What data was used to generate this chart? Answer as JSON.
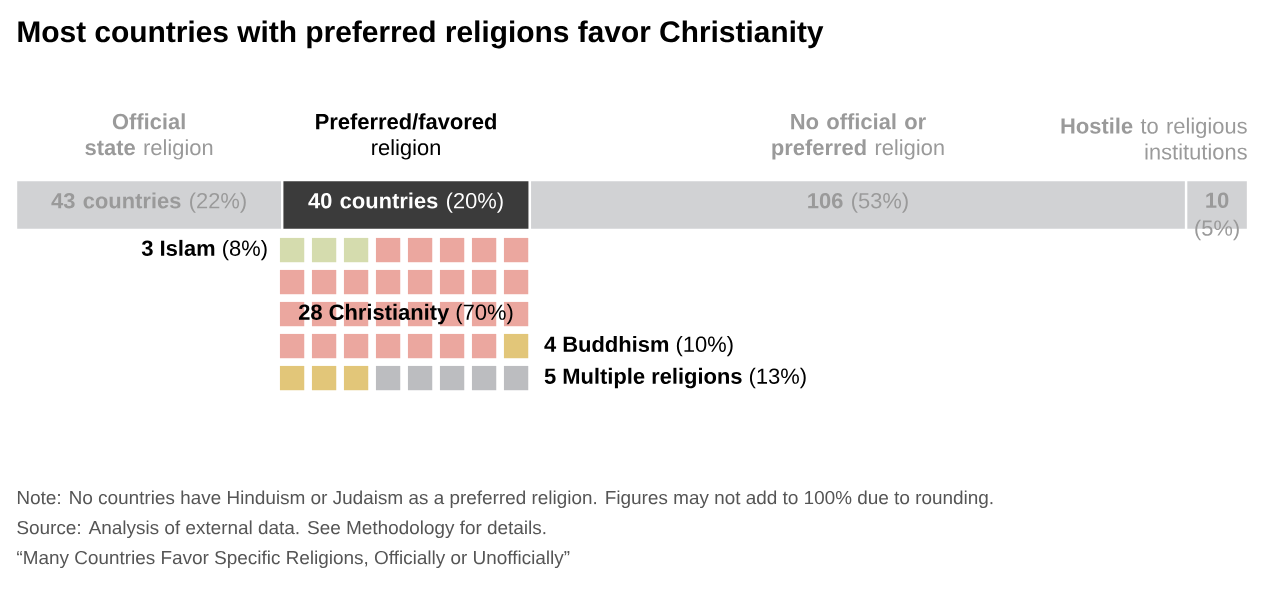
{
  "chart_data": [
    {
      "type": "bar",
      "title": "Most countries with preferred religions favor Christianity",
      "orientation": "horizontal",
      "stacked": true,
      "categories": [
        null
      ],
      "xlim": [
        0,
        199
      ],
      "tick_labels": false,
      "series": [
        {
          "name": "**Official state** religion",
          "color": "#d1d2d4",
          "values": [
            43
          ],
          "value_labels": [
            "**43 countries** (22%)"
          ]
        },
        {
          "name": "**Preferred/favored** religion",
          "color": "#3b3b3b",
          "values": [
            40
          ],
          "value_labels": [
            "**40 countries** (20%)"
          ]
        },
        {
          "name": "**No official or preferred** religion",
          "color": "#d1d2d4",
          "values": [
            106
          ],
          "value_labels": [
            "**106** (53%)"
          ]
        },
        {
          "name": "**Hostile** to religious institutions",
          "color": "#d1d2d4",
          "values": [
            10
          ],
          "value_labels": [
            "**10** (5%)"
          ]
        }
      ],
      "annotations": [
        "Note: No countries have Hinduism or Judaism as a preferred religion. Figures may not add to 100% due to rounding.",
        "Source: Analysis of external data. See Methodology for details.",
        "“Many Countries Favor Specific Religions, Officially or Unofficially”"
      ]
    },
    {
      "type": "other",
      "categories": [
        "3 Islam",
        "28 Christianity",
        "4 Buddhism",
        "5 Multiple religions"
      ],
      "values": [
        8,
        70,
        10,
        13
      ],
      "colors": [
        "#d5dcae",
        "#eba79f",
        "#e2c679",
        "#bcbdc0"
      ],
      "value_labels": [
        "(8%)",
        "(70%)",
        "(10%)",
        "(13%)"
      ]
    }
  ]
}
